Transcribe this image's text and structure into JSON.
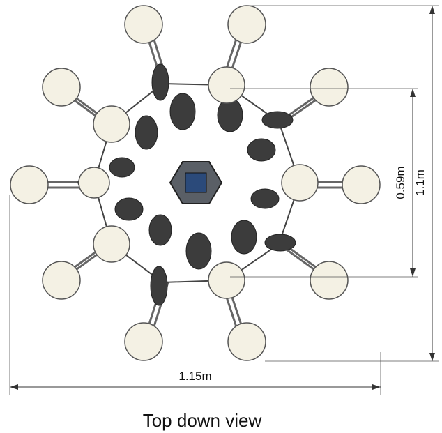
{
  "dimensions": {
    "width": "1.15m",
    "inner_height": "0.59m",
    "height": "1.1m"
  },
  "caption": "Top down view"
}
